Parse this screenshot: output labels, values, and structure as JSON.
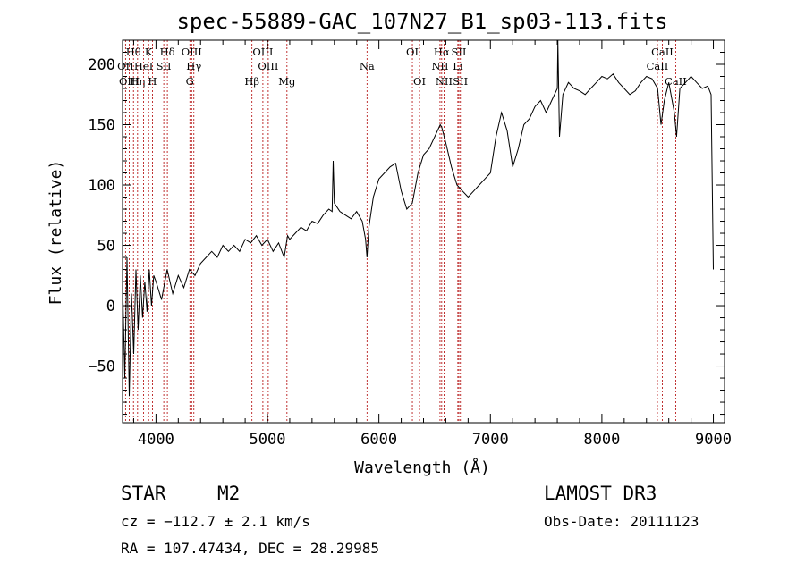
{
  "chart_data": {
    "type": "line",
    "title": "spec-55889-GAC_107N27_B1_sp03-113.fits",
    "xlabel": "Wavelength (Å)",
    "ylabel": "Flux (relative)",
    "xlim": [
      3700,
      9100
    ],
    "ylim": [
      -97,
      220
    ],
    "xticks": [
      4000,
      5000,
      6000,
      7000,
      8000,
      9000
    ],
    "yticks": [
      -50,
      0,
      50,
      100,
      150,
      200
    ],
    "grid": false,
    "legend": "none",
    "series": [
      {
        "x": [
          3700,
          3720,
          3740,
          3760,
          3780,
          3800,
          3820,
          3840,
          3860,
          3880,
          3900,
          3920,
          3940,
          3960,
          3980,
          4000,
          4050,
          4100,
          4150,
          4200,
          4250,
          4300,
          4350,
          4400,
          4450,
          4500,
          4550,
          4600,
          4650,
          4700,
          4750,
          4800,
          4850,
          4900,
          4950,
          5000,
          5050,
          5100,
          5150,
          5180,
          5200,
          5250,
          5300,
          5350,
          5400,
          5450,
          5500,
          5550,
          5580,
          5590,
          5600,
          5650,
          5700,
          5750,
          5800,
          5850,
          5880,
          5893,
          5910,
          5950,
          6000,
          6050,
          6100,
          6150,
          6200,
          6250,
          6300,
          6350,
          6400,
          6450,
          6500,
          6550,
          6563,
          6600,
          6650,
          6700,
          6750,
          6800,
          6850,
          6900,
          6950,
          7000,
          7050,
          7100,
          7150,
          7200,
          7250,
          7300,
          7350,
          7400,
          7450,
          7500,
          7550,
          7600,
          7605,
          7620,
          7650,
          7700,
          7750,
          7800,
          7850,
          7900,
          7950,
          8000,
          8050,
          8100,
          8150,
          8200,
          8250,
          8300,
          8350,
          8400,
          8450,
          8500,
          8530,
          8560,
          8600,
          8650,
          8670,
          8700,
          8750,
          8800,
          8850,
          8900,
          8950,
          8980,
          9000
        ],
        "y": [
          20,
          -60,
          40,
          -75,
          10,
          -40,
          30,
          -20,
          25,
          -10,
          20,
          -5,
          30,
          0,
          25,
          20,
          5,
          30,
          10,
          25,
          15,
          30,
          25,
          35,
          40,
          45,
          40,
          50,
          45,
          50,
          45,
          55,
          52,
          58,
          50,
          55,
          45,
          52,
          40,
          58,
          55,
          60,
          65,
          62,
          70,
          68,
          75,
          80,
          78,
          120,
          85,
          78,
          75,
          72,
          78,
          70,
          55,
          40,
          65,
          90,
          105,
          110,
          115,
          118,
          95,
          80,
          85,
          110,
          125,
          130,
          140,
          150,
          148,
          135,
          115,
          100,
          95,
          90,
          95,
          100,
          105,
          110,
          140,
          160,
          145,
          115,
          130,
          150,
          155,
          165,
          170,
          160,
          170,
          180,
          230,
          140,
          175,
          185,
          180,
          178,
          175,
          180,
          185,
          190,
          188,
          192,
          185,
          180,
          175,
          178,
          185,
          190,
          188,
          180,
          150,
          170,
          185,
          160,
          140,
          180,
          185,
          190,
          185,
          180,
          182,
          175,
          30
        ]
      }
    ],
    "spectral_lines": [
      {
        "name": "Hθ",
        "wavelength": 3798,
        "row": 1
      },
      {
        "name": "OII",
        "wavelength": 3727,
        "row": 2
      },
      {
        "name": "OIII",
        "wavelength": 3760,
        "row": 3
      },
      {
        "name": "Hη",
        "wavelength": 3835,
        "row": 3
      },
      {
        "name": "HeI",
        "wavelength": 3889,
        "row": 2
      },
      {
        "name": "K",
        "wavelength": 3934,
        "row": 1
      },
      {
        "name": "H",
        "wavelength": 3968,
        "row": 3
      },
      {
        "name": "SII",
        "wavelength": 4070,
        "row": 2
      },
      {
        "name": "Hδ",
        "wavelength": 4102,
        "row": 1
      },
      {
        "name": "OIII",
        "wavelength": 4320,
        "row": 1
      },
      {
        "name": "Hγ",
        "wavelength": 4340,
        "row": 2
      },
      {
        "name": "G",
        "wavelength": 4304,
        "row": 3
      },
      {
        "name": "Hβ",
        "wavelength": 4861,
        "row": 3
      },
      {
        "name": "OIII",
        "wavelength": 4959,
        "row": 1
      },
      {
        "name": "OIII",
        "wavelength": 5007,
        "row": 2
      },
      {
        "name": "Mg",
        "wavelength": 5175,
        "row": 3
      },
      {
        "name": "Na",
        "wavelength": 5893,
        "row": 2
      },
      {
        "name": "OI",
        "wavelength": 6300,
        "row": 1
      },
      {
        "name": "OI",
        "wavelength": 6364,
        "row": 3
      },
      {
        "name": "Hα",
        "wavelength": 6563,
        "row": 1
      },
      {
        "name": "NII",
        "wavelength": 6548,
        "row": 2
      },
      {
        "name": "NII",
        "wavelength": 6584,
        "row": 3
      },
      {
        "name": "SII",
        "wavelength": 6717,
        "row": 1
      },
      {
        "name": "Li",
        "wavelength": 6708,
        "row": 2
      },
      {
        "name": "SII",
        "wavelength": 6731,
        "row": 3
      },
      {
        "name": "CaII",
        "wavelength": 8542,
        "row": 1
      },
      {
        "name": "CaII",
        "wavelength": 8498,
        "row": 2
      },
      {
        "name": "CaII",
        "wavelength": 8662,
        "row": 3
      }
    ]
  },
  "info": {
    "class_label": "STAR",
    "subclass": "M2",
    "survey": "LAMOST DR3",
    "redshift_text": "cz = −112.7 ± 2.1 km/s",
    "obs_date_text": "Obs-Date: 20111123",
    "coords_text": "RA = 107.47434, DEC =  28.29985"
  },
  "colors": {
    "spectrum": "#000000",
    "line_marker": "#b00000",
    "axes": "#000000",
    "background": "#ffffff"
  }
}
